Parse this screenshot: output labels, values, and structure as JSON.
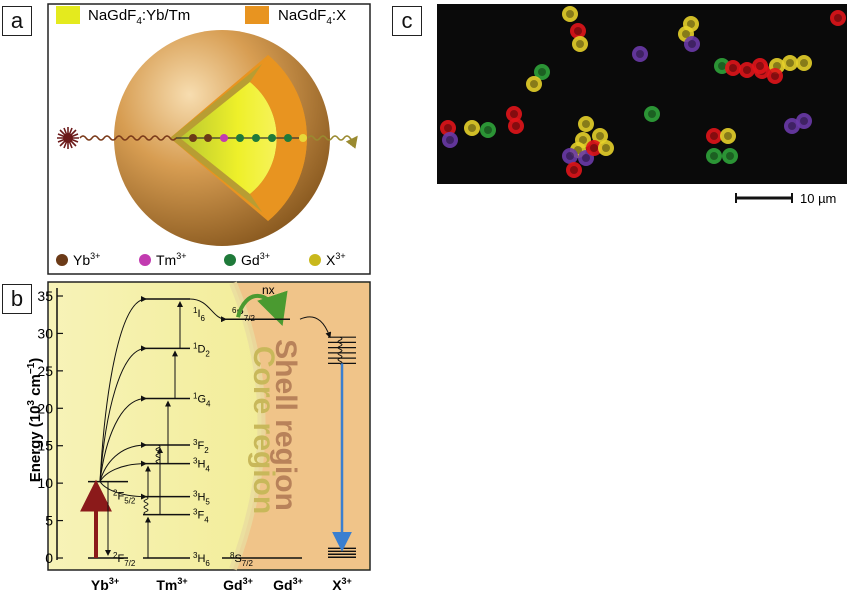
{
  "panel_labels": {
    "a": "a",
    "b": "b",
    "c": "c"
  },
  "panel_a": {
    "legend_core": "NaGdF",
    "legend_core_sub": "4",
    "legend_core_rest": ":Yb/Tm",
    "legend_shell": "NaGdF",
    "legend_shell_sub": "4",
    "legend_shell_rest": ":X",
    "ions": [
      {
        "name": "Yb",
        "charge": "3+",
        "color": "#6b3a17"
      },
      {
        "name": "Tm",
        "charge": "3+",
        "color": "#c23bb0"
      },
      {
        "name": "Gd",
        "charge": "3+",
        "color": "#1f7a3a"
      },
      {
        "name": "X",
        "charge": "3+",
        "color": "#c9b81c"
      }
    ],
    "colors": {
      "core": "#e4ea1e",
      "shell": "#e89420",
      "sphere": "#c98a3a"
    }
  },
  "panel_b": {
    "ylabel": "Energy (10",
    "ylabel_sup": "3",
    "ylabel_unit": " cm",
    "ylabel_unit_sup": "−1",
    "ylabel_close": ")",
    "yticks": [
      0,
      5,
      10,
      15,
      20,
      25,
      30,
      35
    ],
    "yrange": [
      0,
      37
    ],
    "core_region": "Core region",
    "shell_region": "Shell region",
    "nx": "nx",
    "columns": [
      {
        "name": "Yb",
        "charge": "3+"
      },
      {
        "name": "Tm",
        "charge": "3+"
      },
      {
        "name": "Gd",
        "charge": "3+"
      },
      {
        "name": "Gd",
        "charge": "3+"
      },
      {
        "name": "X",
        "charge": "3+"
      }
    ],
    "levels": [
      {
        "id": "yb-2F7/2",
        "energy": 0,
        "term": "2",
        "letter": "F",
        "sub": "7/2"
      },
      {
        "id": "yb-2F5/2",
        "energy": 10.2,
        "term": "2",
        "letter": "F",
        "sub": "5/2"
      },
      {
        "id": "tm-3H6",
        "energy": 0,
        "term": "3",
        "letter": "H",
        "sub": "6"
      },
      {
        "id": "tm-3F4",
        "energy": 5.8,
        "term": "3",
        "letter": "F",
        "sub": "4"
      },
      {
        "id": "tm-3H5",
        "energy": 8.2,
        "term": "3",
        "letter": "H",
        "sub": "5"
      },
      {
        "id": "tm-3H4",
        "energy": 12.6,
        "term": "3",
        "letter": "H",
        "sub": "4"
      },
      {
        "id": "tm-3F2",
        "energy": 15.1,
        "term": "3",
        "letter": "F",
        "sub": "2"
      },
      {
        "id": "tm-1G4",
        "energy": 21.3,
        "term": "1",
        "letter": "G",
        "sub": "4"
      },
      {
        "id": "tm-1D2",
        "energy": 28.0,
        "term": "1",
        "letter": "D",
        "sub": "2"
      },
      {
        "id": "tm-1I6",
        "energy": 34.6,
        "term": "1",
        "letter": "I",
        "sub": "6"
      },
      {
        "id": "gd-8S7/2",
        "energy": 0,
        "term": "8",
        "letter": "S",
        "sub": "7/2"
      },
      {
        "id": "gd-6P7/2",
        "energy": 31.9,
        "term": "6",
        "letter": "P",
        "sub": "7/2"
      }
    ],
    "colors": {
      "core_bg": "#f3ee98",
      "shell_bg": "#f0c489",
      "excite_arrow": "#8b1a1a",
      "emit_arrow": "#3a7fd0",
      "nx_arrow": "#5aa83a"
    }
  },
  "panel_c": {
    "scale_label": "10 µm",
    "dot_colors": [
      "#e0141a",
      "#2fa33a",
      "#e6d02a",
      "#6a3aa8"
    ]
  }
}
